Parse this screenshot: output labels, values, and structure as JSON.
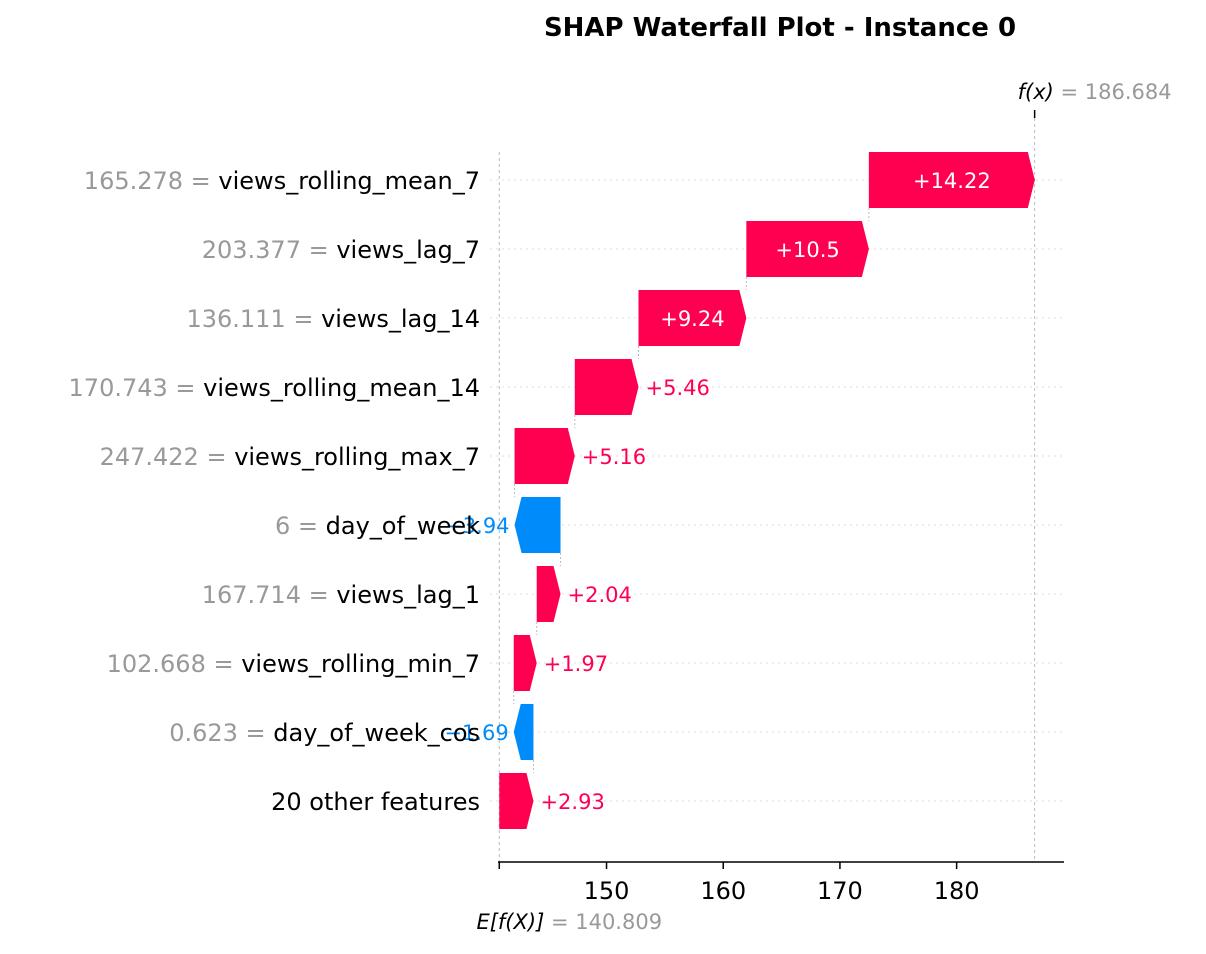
{
  "chart_data": {
    "type": "waterfall",
    "title": "SHAP Waterfall Plot - Instance 0",
    "base_value": 140.809,
    "base_value_text": "140.809",
    "base_label_prefix": "E[f(X)]",
    "output_value": 186.684,
    "output_value_text": "186.684",
    "output_label_prefix": "f(x)",
    "features": [
      {
        "value": "165.278",
        "name": "views_rolling_mean_7",
        "shap": 14.22,
        "label": "+14.22"
      },
      {
        "value": "203.377",
        "name": "views_lag_7",
        "shap": 10.5,
        "label": "+10.5"
      },
      {
        "value": "136.111",
        "name": "views_lag_14",
        "shap": 9.24,
        "label": "+9.24"
      },
      {
        "value": "170.743",
        "name": "views_rolling_mean_14",
        "shap": 5.46,
        "label": "+5.46"
      },
      {
        "value": "247.422",
        "name": "views_rolling_max_7",
        "shap": 5.16,
        "label": "+5.16"
      },
      {
        "value": "6",
        "name": "day_of_week",
        "shap": -3.94,
        "label": "−3.94"
      },
      {
        "value": "167.714",
        "name": "views_lag_1",
        "shap": 2.04,
        "label": "+2.04"
      },
      {
        "value": "102.668",
        "name": "views_rolling_min_7",
        "shap": 1.97,
        "label": "+1.97"
      },
      {
        "value": "0.623",
        "name": "day_of_week_cos",
        "shap": -1.69,
        "label": "−1.69"
      },
      {
        "value": "",
        "name": "20 other features",
        "shap": 2.93,
        "label": "+2.93"
      }
    ],
    "x_ticks": [
      150,
      160,
      170,
      180
    ],
    "x_tick_labels": [
      "150",
      "160",
      "170",
      "180"
    ],
    "xlim": [
      140.7,
      189.2
    ],
    "colors": {
      "positive": "#ff0051",
      "negative": "#008bfb",
      "value_text": "#999999",
      "grid": "#cccccc",
      "axis": "#000000"
    }
  }
}
